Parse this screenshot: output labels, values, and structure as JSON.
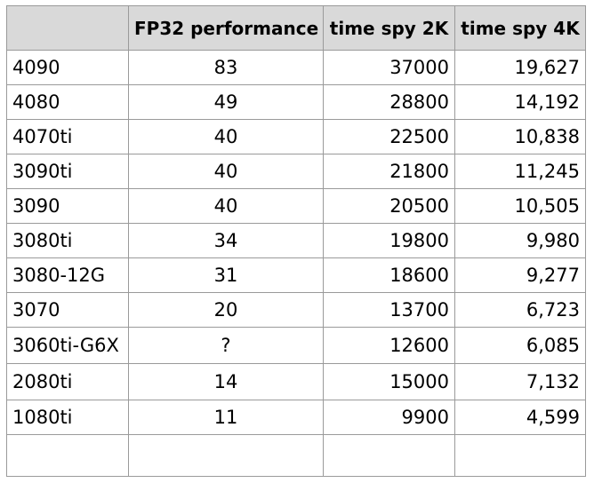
{
  "table": {
    "headers": [
      "",
      "FP32 performance",
      "time spy 2K",
      "time spy 4K"
    ],
    "rows": [
      {
        "gpu": "4090",
        "fp32": "83",
        "ts2k": "37000",
        "ts4k": "19,627"
      },
      {
        "gpu": "4080",
        "fp32": "49",
        "ts2k": "28800",
        "ts4k": "14,192"
      },
      {
        "gpu": "4070ti",
        "fp32": "40",
        "ts2k": "22500",
        "ts4k": "10,838"
      },
      {
        "gpu": "3090ti",
        "fp32": "40",
        "ts2k": "21800",
        "ts4k": "11,245"
      },
      {
        "gpu": "3090",
        "fp32": "40",
        "ts2k": "20500",
        "ts4k": "10,505"
      },
      {
        "gpu": "3080ti",
        "fp32": "34",
        "ts2k": "19800",
        "ts4k": "9,980"
      },
      {
        "gpu": "3080-12G",
        "fp32": "31",
        "ts2k": "18600",
        "ts4k": "9,277"
      },
      {
        "gpu": "3070",
        "fp32": "20",
        "ts2k": "13700",
        "ts4k": "6,723"
      },
      {
        "gpu": "3060ti-G6X",
        "fp32": "?",
        "ts2k": "12600",
        "ts4k": "6,085"
      },
      {
        "gpu": "2080ti",
        "fp32": "14",
        "ts2k": "15000",
        "ts4k": "7,132"
      },
      {
        "gpu": "1080ti",
        "fp32": "11",
        "ts2k": "9900",
        "ts4k": "4,599"
      },
      {
        "gpu": "",
        "fp32": "",
        "ts2k": "",
        "ts4k": ""
      }
    ]
  }
}
